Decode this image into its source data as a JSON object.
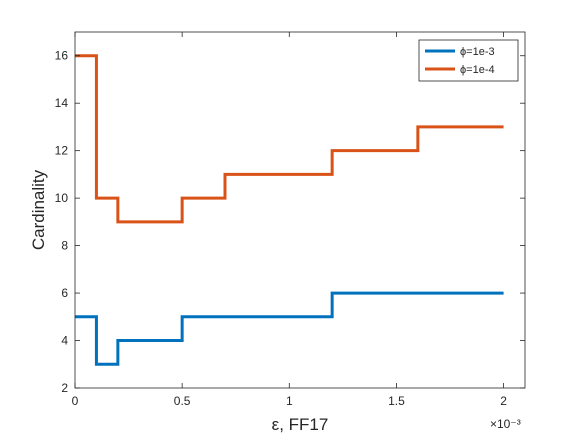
{
  "chart_data": {
    "type": "line",
    "step": true,
    "xlabel": "ε, FF17",
    "ylabel": "Cardinality",
    "x_exponent_label": "×10⁻³",
    "xlim": [
      0,
      0.0021
    ],
    "ylim": [
      2,
      17
    ],
    "xticks": [
      0,
      0.0005,
      0.001,
      0.0015,
      0.002
    ],
    "xtick_labels": [
      "0",
      "0.5",
      "1",
      "1.5",
      "2"
    ],
    "yticks": [
      2,
      4,
      6,
      8,
      10,
      12,
      14,
      16
    ],
    "ytick_labels": [
      "2",
      "4",
      "6",
      "8",
      "10",
      "12",
      "14",
      "16"
    ],
    "grid": false,
    "legend_position": "top-right",
    "series": [
      {
        "name": "ϕ=1e-3",
        "color": "#0072BD",
        "x": [
          0,
          0.0001,
          0.0002,
          0.0005,
          0.0012,
          0.002
        ],
        "y": [
          5,
          3,
          4,
          5,
          6,
          6
        ]
      },
      {
        "name": "ϕ=1e-4",
        "color": "#D95319",
        "x": [
          0,
          0.0001,
          0.0002,
          0.0005,
          0.0007,
          0.0012,
          0.0016,
          0.002
        ],
        "y": [
          16,
          10,
          9,
          10,
          11,
          12,
          13,
          13
        ]
      }
    ]
  }
}
